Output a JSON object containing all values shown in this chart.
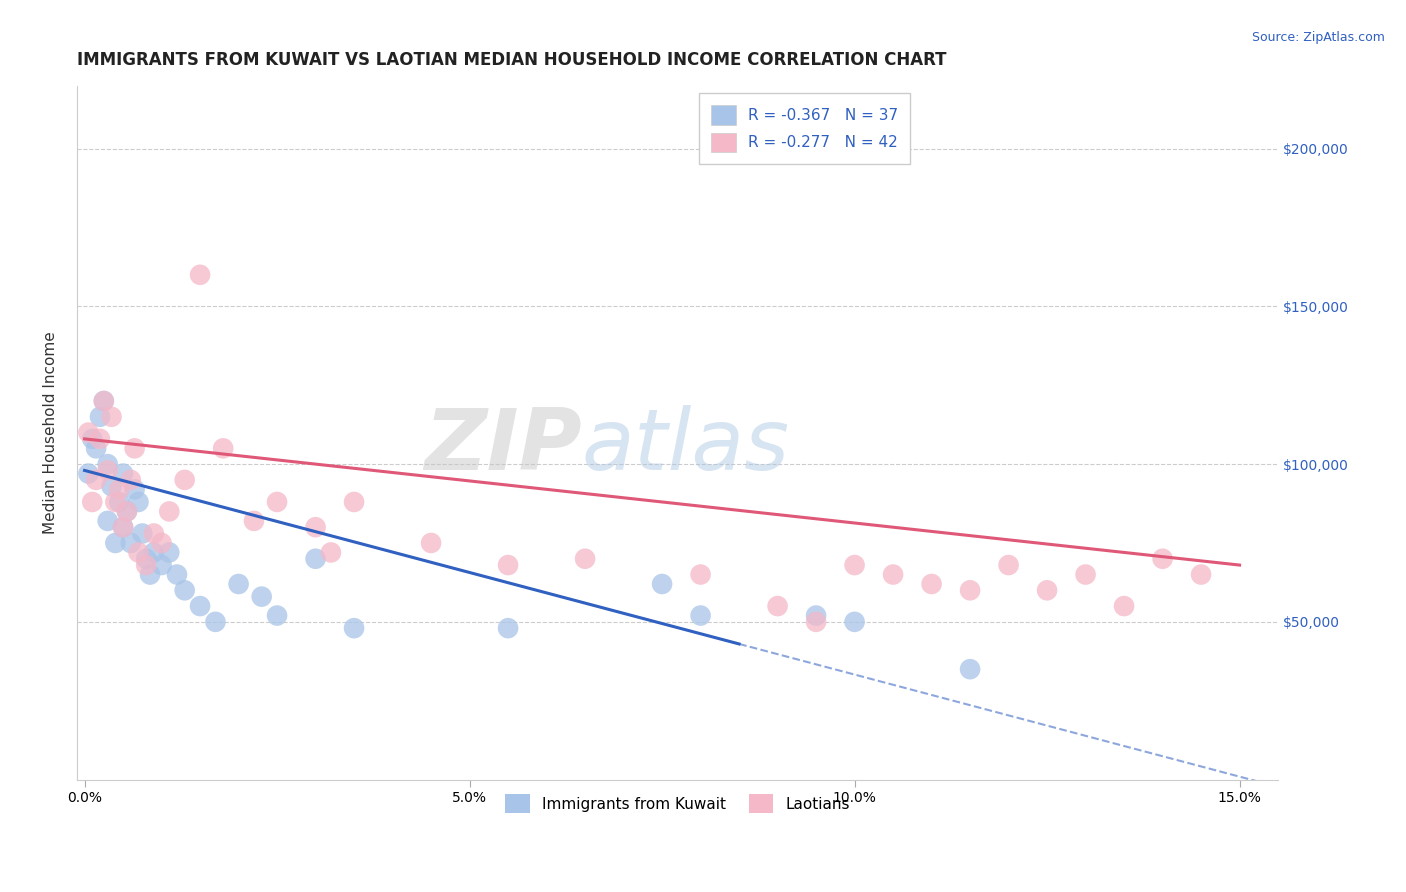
{
  "title": "IMMIGRANTS FROM KUWAIT VS LAOTIAN MEDIAN HOUSEHOLD INCOME CORRELATION CHART",
  "source_text": "Source: ZipAtlas.com",
  "ylabel": "Median Household Income",
  "xlabel_ticks": [
    "0.0%",
    "5.0%",
    "10.0%",
    "15.0%"
  ],
  "xlabel_vals": [
    0.0,
    5.0,
    10.0,
    15.0
  ],
  "xlim": [
    -0.1,
    15.5
  ],
  "ylim": [
    0,
    220000
  ],
  "yticks": [
    50000,
    100000,
    150000,
    200000
  ],
  "ytick_labels": [
    "$50,000",
    "$100,000",
    "$150,000",
    "$200,000"
  ],
  "watermark_zip": "ZIP",
  "watermark_atlas": "atlas",
  "legend_labels": [
    "Immigrants from Kuwait",
    "Laotians"
  ],
  "legend_r": [
    -0.367,
    -0.277
  ],
  "legend_n": [
    37,
    42
  ],
  "blue_color": "#a8c4e8",
  "pink_color": "#f4b8c8",
  "blue_line_color": "#3060c0",
  "pink_line_color": "#e05878",
  "blue_scatter_x": [
    0.05,
    0.1,
    0.15,
    0.2,
    0.25,
    0.3,
    0.3,
    0.35,
    0.4,
    0.45,
    0.5,
    0.5,
    0.55,
    0.6,
    0.65,
    0.7,
    0.75,
    0.8,
    0.85,
    0.9,
    1.0,
    1.1,
    1.2,
    1.3,
    1.5,
    1.7,
    2.0,
    2.3,
    2.5,
    3.0,
    3.5,
    5.5,
    7.5,
    8.0,
    9.5,
    10.0,
    11.5
  ],
  "blue_scatter_y": [
    97000,
    108000,
    105000,
    115000,
    120000,
    100000,
    82000,
    93000,
    75000,
    88000,
    97000,
    80000,
    85000,
    75000,
    92000,
    88000,
    78000,
    70000,
    65000,
    72000,
    68000,
    72000,
    65000,
    60000,
    55000,
    50000,
    62000,
    58000,
    52000,
    70000,
    48000,
    48000,
    62000,
    52000,
    52000,
    50000,
    35000
  ],
  "pink_scatter_x": [
    0.05,
    0.1,
    0.15,
    0.2,
    0.25,
    0.3,
    0.35,
    0.4,
    0.45,
    0.5,
    0.55,
    0.6,
    0.65,
    0.7,
    0.8,
    0.9,
    1.0,
    1.1,
    1.3,
    1.5,
    1.8,
    2.2,
    2.5,
    3.0,
    3.2,
    3.5,
    4.5,
    5.5,
    6.5,
    8.0,
    9.0,
    9.5,
    10.0,
    10.5,
    11.0,
    11.5,
    12.0,
    12.5,
    13.0,
    13.5,
    14.0,
    14.5
  ],
  "pink_scatter_y": [
    110000,
    88000,
    95000,
    108000,
    120000,
    98000,
    115000,
    88000,
    92000,
    80000,
    85000,
    95000,
    105000,
    72000,
    68000,
    78000,
    75000,
    85000,
    95000,
    160000,
    105000,
    82000,
    88000,
    80000,
    72000,
    88000,
    75000,
    68000,
    70000,
    65000,
    55000,
    50000,
    68000,
    65000,
    62000,
    60000,
    68000,
    60000,
    65000,
    55000,
    70000,
    65000
  ],
  "blue_line_x0": 0.0,
  "blue_line_x1": 8.5,
  "blue_line_y0": 98000,
  "blue_line_y1": 43000,
  "blue_dash_x0": 8.5,
  "blue_dash_x1": 15.5,
  "pink_line_x0": 0.0,
  "pink_line_x1": 15.0,
  "pink_line_y0": 108000,
  "pink_line_y1": 68000,
  "title_fontsize": 12,
  "axis_label_fontsize": 11,
  "tick_fontsize": 10,
  "legend_fontsize": 11
}
